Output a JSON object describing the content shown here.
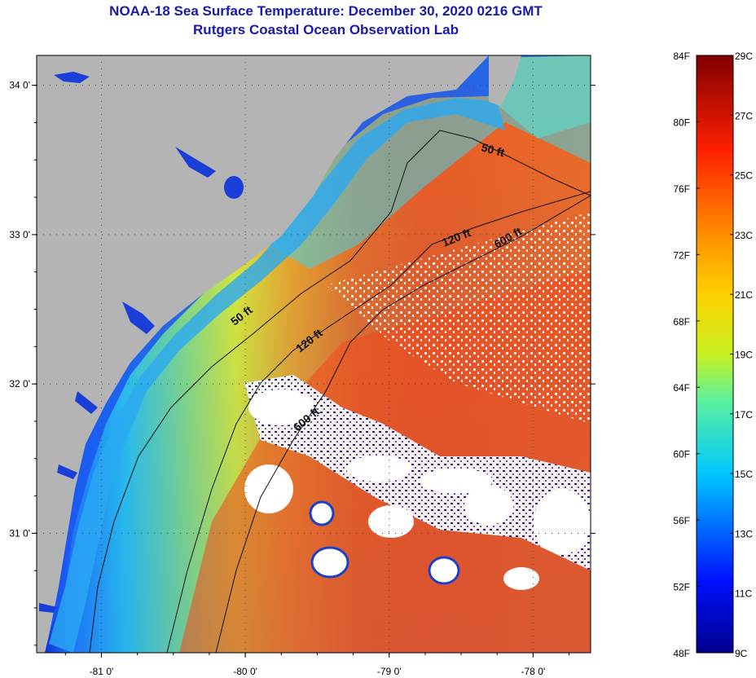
{
  "title": "NOAA-18 Sea Surface Temperature:  December 30, 2020 0216 GMT",
  "subtitle": "Rutgers Coastal Ocean Observation Lab",
  "map": {
    "lat_ticks": [
      "34 0'",
      "33 0'",
      "32 0'",
      "31 0'"
    ],
    "lon_ticks": [
      "-81 0'",
      "-80 0'",
      "-79 0'",
      "-78 0'"
    ],
    "lat_values": [
      34,
      33,
      32,
      31
    ],
    "lon_values": [
      -81,
      -80,
      -79,
      -78
    ],
    "lon_range": [
      -81.45,
      -77.6
    ],
    "lat_range": [
      30.2,
      34.2
    ],
    "contours": [
      {
        "label": "50 ft"
      },
      {
        "label": "120 ft"
      },
      {
        "label": "600 ft"
      }
    ],
    "colors": {
      "land": "#b4b4b4",
      "cloud": "#ffffff"
    }
  },
  "colorbar": {
    "fahrenheit": [
      "84F",
      "80F",
      "76F",
      "72F",
      "68F",
      "64F",
      "60F",
      "56F",
      "52F",
      "48F"
    ],
    "celsius": [
      "29C",
      "27C",
      "25C",
      "23C",
      "21C",
      "19C",
      "17C",
      "15C",
      "13C",
      "11C",
      "9C"
    ],
    "min_c": 9,
    "max_c": 29
  }
}
